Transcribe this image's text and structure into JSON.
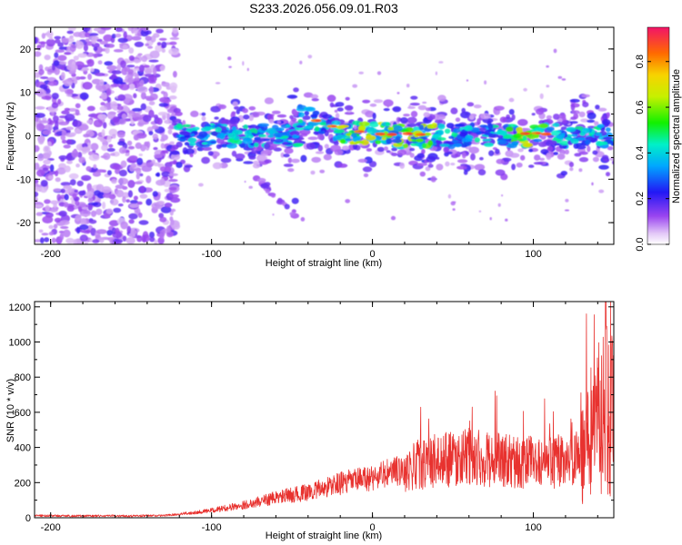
{
  "title": "S233.2026.056.09.01.R03",
  "chart_data": [
    {
      "type": "heatmap",
      "name": "spectrogram",
      "xlabel": "Height of straight line (km)",
      "ylabel": "Frequency (Hz)",
      "xlim": [
        -210,
        150
      ],
      "ylim": [
        -25,
        25
      ],
      "xticks": [
        -200,
        -100,
        0,
        100
      ],
      "yticks": [
        -20,
        -10,
        0,
        10,
        20
      ],
      "colorbar": {
        "label": "Normalized spectral amplitude",
        "range": [
          0.0,
          0.95
        ],
        "ticks": [
          0.0,
          0.2,
          0.4,
          0.6,
          0.8
        ]
      },
      "features": {
        "noise_region_x": [
          -210,
          -122
        ],
        "signal_band_freq_hz": 0,
        "peak_band_x": [
          -20,
          110
        ],
        "secondary_streak": {
          "x": [
            -70,
            -43
          ],
          "freq_hz": [
            -10,
            -20
          ]
        }
      }
    },
    {
      "type": "line",
      "name": "snr",
      "xlabel": "Height of straight line (km)",
      "ylabel": "SNR (10 * v/v)",
      "xlim": [
        -210,
        150
      ],
      "ylim": [
        0,
        1230
      ],
      "xticks": [
        -200,
        -100,
        0,
        100
      ],
      "yticks": [
        0,
        200,
        400,
        600,
        800,
        1000,
        1200
      ],
      "color": "#e8322f",
      "series": [
        {
          "name": "SNR",
          "x": [
            -210,
            -190,
            -170,
            -150,
            -130,
            -120,
            -110,
            -100,
            -90,
            -80,
            -70,
            -60,
            -50,
            -40,
            -30,
            -20,
            -10,
            0,
            10,
            20,
            30,
            40,
            50,
            60,
            70,
            80,
            90,
            100,
            110,
            120,
            130,
            135,
            140,
            145,
            150
          ],
          "values": [
            12,
            10,
            10,
            10,
            12,
            20,
            30,
            40,
            55,
            70,
            90,
            110,
            125,
            140,
            165,
            190,
            205,
            220,
            245,
            265,
            290,
            310,
            320,
            330,
            320,
            310,
            300,
            300,
            300,
            310,
            320,
            400,
            520,
            600,
            620
          ]
        }
      ],
      "peaks": [
        {
          "x": 62,
          "y": 630
        },
        {
          "x": 133,
          "y": 1160
        },
        {
          "x": 148,
          "y": 1230
        }
      ]
    }
  ]
}
